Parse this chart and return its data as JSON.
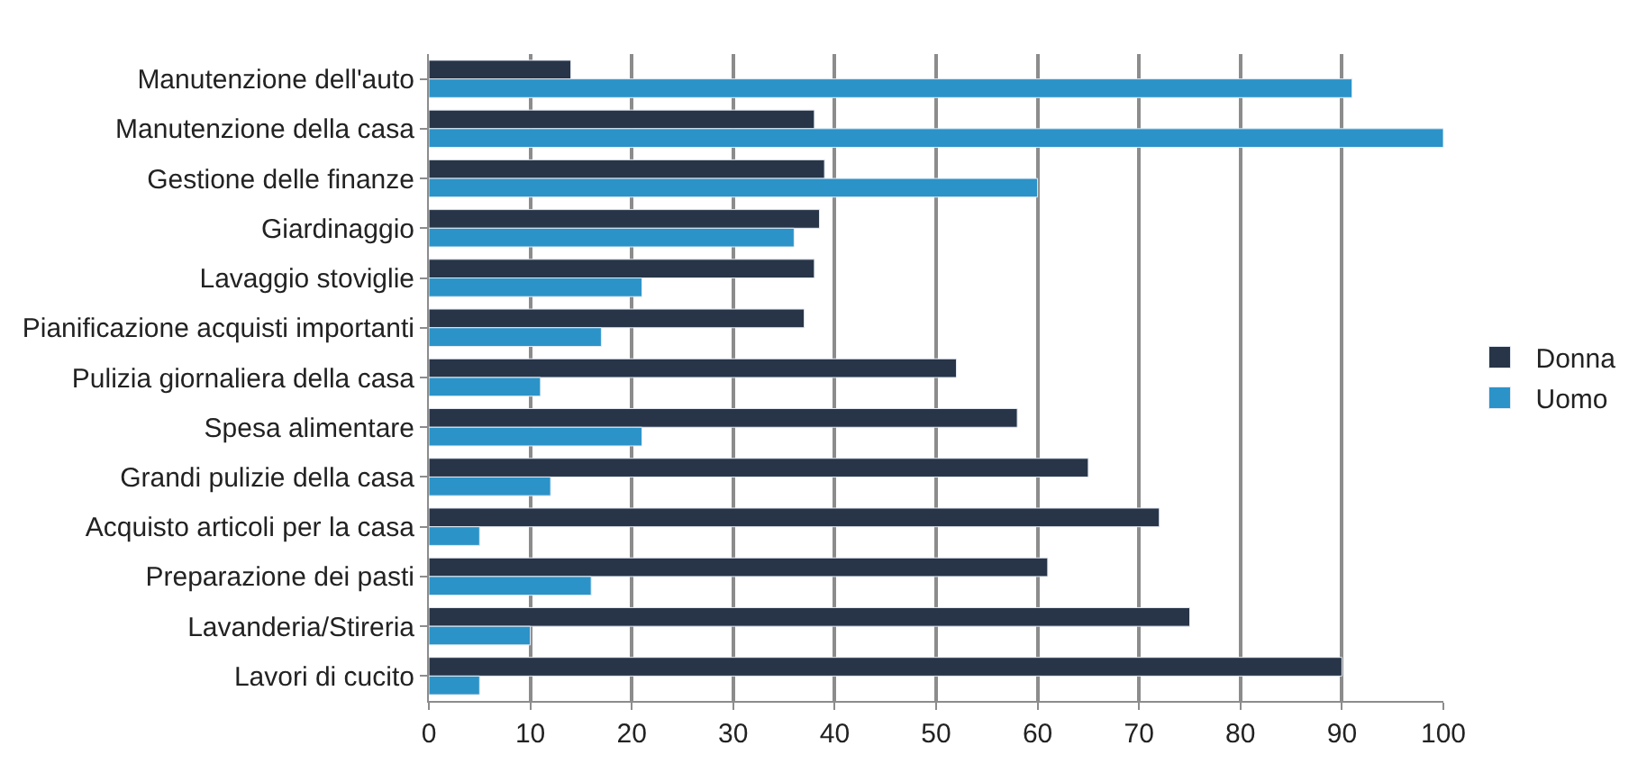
{
  "chart_data": {
    "type": "bar",
    "orientation": "horizontal",
    "categories": [
      "Manutenzione dell'auto",
      "Manutenzione della casa",
      "Gestione delle finanze",
      "Giardinaggio",
      "Lavaggio stoviglie",
      "Pianificazione acquisti importanti",
      "Pulizia giornaliera della casa",
      "Spesa alimentare",
      "Grandi pulizie della casa",
      "Acquisto articoli per la casa",
      "Preparazione dei pasti",
      "Lavanderia/Stireria",
      "Lavori di cucito"
    ],
    "series": [
      {
        "name": "Donna",
        "color": "#283548",
        "values": [
          14,
          38,
          39,
          38.5,
          38,
          37,
          52,
          58,
          65,
          72,
          61,
          75,
          90
        ]
      },
      {
        "name": "Uomo",
        "color": "#2b93c8",
        "values": [
          91,
          100,
          60,
          36,
          21,
          17,
          11,
          21,
          12,
          5,
          16,
          10,
          5
        ]
      }
    ],
    "xlim": [
      0,
      100
    ],
    "xticks": [
      0,
      10,
      20,
      30,
      40,
      50,
      60,
      70,
      80,
      90,
      100
    ],
    "grid": "x",
    "legend": "right"
  }
}
